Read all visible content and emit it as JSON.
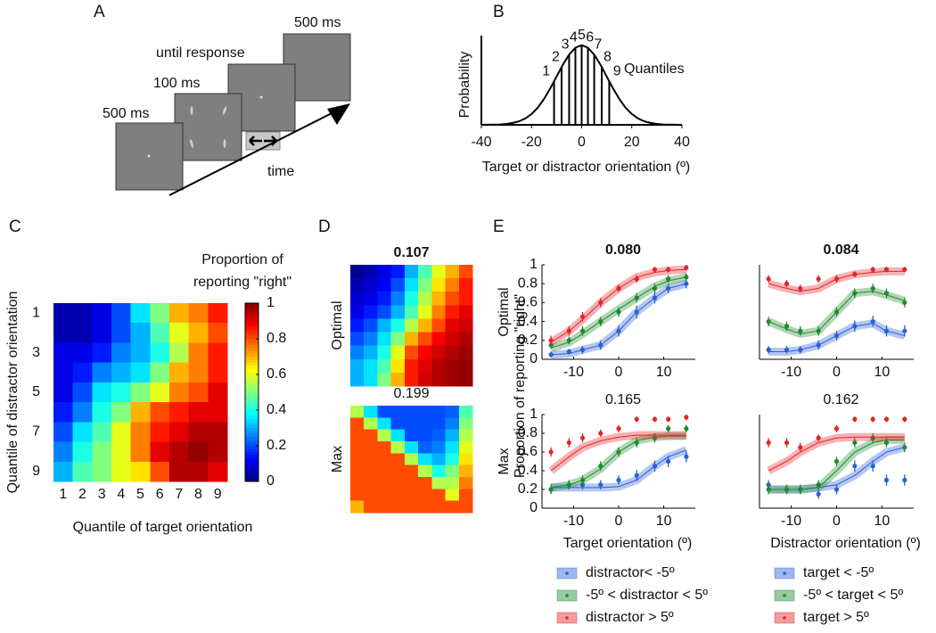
{
  "diagram": {
    "label": "A",
    "frames": [
      {
        "label": "500 ms"
      },
      {
        "label": "100 ms"
      },
      {
        "label": "until response"
      },
      {
        "label": "500 ms"
      }
    ],
    "axis_label": "time"
  },
  "chart_data": [
    {
      "type": "line",
      "panel": "B",
      "xlabel": "Target or distractor orientation (º)",
      "ylabel": "Probability",
      "annotation": "Quantiles",
      "x": [
        -40,
        -37.5,
        -35,
        -32.5,
        -30,
        -27.5,
        -25,
        -22.5,
        -20,
        -17.5,
        -15,
        -12.5,
        -10,
        -7.5,
        -5,
        -2.5,
        0,
        2.5,
        5,
        7.5,
        10,
        12.5,
        15,
        17.5,
        20,
        22.5,
        25,
        27.5,
        30,
        32.5,
        35,
        37.5,
        40
      ],
      "values": [
        0,
        0.001,
        0.002,
        0.005,
        0.011,
        0.023,
        0.044,
        0.08,
        0.135,
        0.216,
        0.325,
        0.458,
        0.607,
        0.755,
        0.882,
        0.969,
        1,
        0.969,
        0.882,
        0.755,
        0.607,
        0.458,
        0.325,
        0.216,
        0.135,
        0.08,
        0.044,
        0.023,
        0.011,
        0.005,
        0.002,
        0.001,
        0
      ],
      "color": "#000000",
      "xlim": [
        -40,
        40
      ],
      "ylim": [
        0,
        1.12
      ],
      "xticks": [
        -40,
        -20,
        0,
        20,
        40
      ],
      "quantiles": {
        "x": [
          -11,
          -8,
          -5,
          -2.5,
          0,
          2.5,
          5,
          8,
          11
        ],
        "labels": [
          "1",
          "2",
          "3",
          "4",
          "5",
          "6",
          "7",
          "8",
          "9"
        ]
      }
    },
    {
      "type": "heatmap",
      "panel": "C",
      "xlabel": "Quantile of target orientation",
      "ylabel": "Quantile of distractor orientation",
      "colorbar_title": [
        "Proportion of",
        "reporting \"right\""
      ],
      "x_categories": [
        "1",
        "2",
        "3",
        "4",
        "5",
        "6",
        "7",
        "8",
        "9"
      ],
      "y_categories": [
        "1",
        null,
        "3",
        null,
        "5",
        null,
        "7",
        null,
        "9"
      ],
      "values": [
        [
          0.05,
          0.05,
          0.1,
          0.2,
          0.35,
          0.5,
          0.7,
          0.75,
          0.85
        ],
        [
          0.05,
          0.05,
          0.1,
          0.2,
          0.3,
          0.45,
          0.6,
          0.7,
          0.8
        ],
        [
          0.1,
          0.1,
          0.15,
          0.25,
          0.3,
          0.4,
          0.55,
          0.75,
          0.85
        ],
        [
          0.1,
          0.15,
          0.25,
          0.3,
          0.35,
          0.5,
          0.7,
          0.75,
          0.85
        ],
        [
          0.1,
          0.2,
          0.35,
          0.4,
          0.5,
          0.6,
          0.75,
          0.8,
          0.9
        ],
        [
          0.15,
          0.25,
          0.4,
          0.5,
          0.7,
          0.8,
          0.85,
          0.9,
          0.9
        ],
        [
          0.2,
          0.35,
          0.45,
          0.6,
          0.75,
          0.85,
          0.9,
          0.95,
          0.95
        ],
        [
          0.25,
          0.4,
          0.5,
          0.6,
          0.75,
          0.9,
          0.95,
          0.98,
          0.95
        ],
        [
          0.3,
          0.45,
          0.5,
          0.6,
          0.65,
          0.8,
          0.95,
          0.95,
          0.9
        ]
      ],
      "clim": [
        0,
        1
      ],
      "cticks": [
        0,
        0.2,
        0.4,
        0.6,
        0.8,
        1
      ],
      "colormap": "jet"
    },
    {
      "type": "heatmap",
      "panel": "D",
      "title": "0.107",
      "title_weight": "bold",
      "ylabel": "Optimal",
      "values": [
        [
          0.02,
          0.05,
          0.1,
          0.15,
          0.3,
          0.45,
          0.6,
          0.7,
          0.8
        ],
        [
          0.05,
          0.08,
          0.12,
          0.2,
          0.35,
          0.5,
          0.65,
          0.75,
          0.85
        ],
        [
          0.08,
          0.1,
          0.15,
          0.25,
          0.4,
          0.55,
          0.7,
          0.8,
          0.85
        ],
        [
          0.1,
          0.15,
          0.2,
          0.3,
          0.45,
          0.6,
          0.75,
          0.85,
          0.9
        ],
        [
          0.15,
          0.2,
          0.3,
          0.4,
          0.55,
          0.7,
          0.8,
          0.9,
          0.92
        ],
        [
          0.2,
          0.25,
          0.35,
          0.5,
          0.7,
          0.8,
          0.88,
          0.92,
          0.95
        ],
        [
          0.25,
          0.3,
          0.4,
          0.6,
          0.8,
          0.88,
          0.92,
          0.95,
          0.97
        ],
        [
          0.3,
          0.35,
          0.45,
          0.65,
          0.85,
          0.9,
          0.95,
          0.97,
          0.98
        ],
        [
          0.3,
          0.35,
          0.5,
          0.7,
          0.85,
          0.92,
          0.95,
          0.97,
          0.98
        ]
      ],
      "clim": [
        0,
        1
      ],
      "colormap": "jet"
    },
    {
      "type": "heatmap",
      "title": "0.199",
      "title_weight": "normal",
      "ylabel": "Max",
      "values": [
        [
          0.55,
          0.35,
          0.2,
          0.2,
          0.2,
          0.2,
          0.2,
          0.22,
          0.45
        ],
        [
          0.8,
          0.55,
          0.35,
          0.2,
          0.2,
          0.2,
          0.2,
          0.25,
          0.5
        ],
        [
          0.8,
          0.8,
          0.55,
          0.35,
          0.2,
          0.2,
          0.22,
          0.3,
          0.55
        ],
        [
          0.8,
          0.8,
          0.8,
          0.55,
          0.35,
          0.22,
          0.25,
          0.35,
          0.6
        ],
        [
          0.8,
          0.8,
          0.8,
          0.8,
          0.55,
          0.35,
          0.3,
          0.4,
          0.65
        ],
        [
          0.8,
          0.8,
          0.8,
          0.8,
          0.8,
          0.55,
          0.4,
          0.5,
          0.7
        ],
        [
          0.8,
          0.8,
          0.8,
          0.8,
          0.8,
          0.8,
          0.55,
          0.55,
          0.75
        ],
        [
          0.8,
          0.8,
          0.8,
          0.8,
          0.8,
          0.8,
          0.8,
          0.6,
          0.8
        ],
        [
          0.7,
          0.8,
          0.8,
          0.8,
          0.8,
          0.8,
          0.8,
          0.8,
          0.8
        ]
      ],
      "clim": [
        0,
        1
      ],
      "colormap": "jet"
    },
    {
      "type": "errorbar",
      "panel": "E",
      "title": "0.080",
      "title_weight": "bold",
      "row_label": "Optimal",
      "ylabel": "Proportion of reporting \"right\"",
      "legend": "below",
      "x": [
        -15,
        -11,
        -8,
        -4,
        0,
        4,
        8,
        11,
        15
      ],
      "xlim": [
        -17,
        17
      ],
      "xticks": [
        -10,
        0,
        10
      ],
      "ylim": [
        0,
        1
      ],
      "yticks": [
        0,
        0.2,
        0.4,
        0.6,
        0.8,
        1
      ],
      "series": [
        {
          "name": "distractor< -5º",
          "color": "#2a5fd8",
          "values": [
            0.05,
            0.08,
            0.1,
            0.15,
            0.3,
            0.5,
            0.65,
            0.75,
            0.8
          ],
          "errors": [
            0.03,
            0.03,
            0.04,
            0.05,
            0.06,
            0.07,
            0.06,
            0.05,
            0.05
          ],
          "model": [
            0.05,
            0.06,
            0.1,
            0.15,
            0.3,
            0.5,
            0.65,
            0.75,
            0.8
          ]
        },
        {
          "name": "-5º < distractor < 5º",
          "color": "#1f8a2e",
          "values": [
            0.15,
            0.2,
            0.3,
            0.4,
            0.5,
            0.65,
            0.75,
            0.85,
            0.87
          ],
          "errors": [
            0.04,
            0.04,
            0.05,
            0.05,
            0.05,
            0.05,
            0.05,
            0.04,
            0.04
          ],
          "model": [
            0.12,
            0.18,
            0.27,
            0.4,
            0.53,
            0.65,
            0.77,
            0.83,
            0.87
          ]
        },
        {
          "name": "distractor > 5º",
          "color": "#e52328",
          "values": [
            0.2,
            0.3,
            0.45,
            0.6,
            0.75,
            0.85,
            0.95,
            0.95,
            0.97
          ],
          "errors": [
            0.05,
            0.05,
            0.05,
            0.05,
            0.04,
            0.04,
            0.03,
            0.03,
            0.03
          ],
          "model": [
            0.18,
            0.3,
            0.42,
            0.6,
            0.75,
            0.87,
            0.92,
            0.94,
            0.95
          ]
        }
      ]
    },
    {
      "type": "errorbar",
      "title": "0.084",
      "title_weight": "bold",
      "legend": "below",
      "x": [
        -15,
        -11,
        -8,
        -4,
        0,
        4,
        8,
        11,
        15
      ],
      "xlim": [
        -17,
        17
      ],
      "xticks": [
        -10,
        0,
        10
      ],
      "ylim": [
        0,
        1
      ],
      "series": [
        {
          "name": "target < -5º",
          "color": "#2a5fd8",
          "values": [
            0.1,
            0.1,
            0.1,
            0.15,
            0.25,
            0.35,
            0.4,
            0.3,
            0.3
          ],
          "errors": [
            0.04,
            0.04,
            0.04,
            0.05,
            0.05,
            0.06,
            0.06,
            0.06,
            0.06
          ],
          "model": [
            0.08,
            0.08,
            0.1,
            0.15,
            0.25,
            0.35,
            0.38,
            0.3,
            0.25
          ]
        },
        {
          "name": "-5º < target < 5º",
          "color": "#1f8a2e",
          "values": [
            0.4,
            0.35,
            0.3,
            0.3,
            0.5,
            0.7,
            0.75,
            0.7,
            0.6
          ],
          "errors": [
            0.05,
            0.05,
            0.05,
            0.05,
            0.05,
            0.05,
            0.05,
            0.05,
            0.05
          ],
          "model": [
            0.4,
            0.32,
            0.27,
            0.3,
            0.5,
            0.7,
            0.72,
            0.68,
            0.62
          ]
        },
        {
          "name": "target > 5º",
          "color": "#e52328",
          "values": [
            0.85,
            0.8,
            0.75,
            0.85,
            0.85,
            0.9,
            0.95,
            0.95,
            0.95
          ],
          "errors": [
            0.04,
            0.04,
            0.04,
            0.04,
            0.04,
            0.03,
            0.03,
            0.03,
            0.03
          ],
          "model": [
            0.8,
            0.75,
            0.72,
            0.75,
            0.85,
            0.9,
            0.92,
            0.93,
            0.93
          ]
        }
      ]
    },
    {
      "type": "errorbar",
      "title": "0.165",
      "title_weight": "normal",
      "row_label": "Max",
      "xlabel": "Target orientation (º)",
      "x": [
        -15,
        -11,
        -8,
        -4,
        0,
        4,
        8,
        11,
        15
      ],
      "xlim": [
        -17,
        17
      ],
      "xticks": [
        -10,
        0,
        10
      ],
      "ylim": [
        0,
        1
      ],
      "yticks": [
        0,
        0.2,
        0.4,
        0.6,
        0.8,
        1
      ],
      "series": [
        {
          "color": "#2a5fd8",
          "values": [
            0.2,
            0.25,
            0.25,
            0.25,
            0.3,
            0.35,
            0.45,
            0.5,
            0.55
          ],
          "errors": [
            0.04,
            0.04,
            0.05,
            0.05,
            0.05,
            0.06,
            0.06,
            0.06,
            0.06
          ],
          "model": [
            0.22,
            0.22,
            0.22,
            0.22,
            0.23,
            0.3,
            0.45,
            0.55,
            0.62
          ]
        },
        {
          "color": "#1f8a2e",
          "values": [
            0.2,
            0.25,
            0.3,
            0.45,
            0.6,
            0.7,
            0.75,
            0.85,
            0.85
          ],
          "errors": [
            0.05,
            0.05,
            0.05,
            0.05,
            0.05,
            0.05,
            0.05,
            0.04,
            0.04
          ],
          "model": [
            0.22,
            0.25,
            0.3,
            0.42,
            0.6,
            0.72,
            0.76,
            0.77,
            0.77
          ]
        },
        {
          "color": "#e52328",
          "values": [
            0.6,
            0.7,
            0.75,
            0.8,
            0.85,
            0.95,
            0.95,
            0.95,
            0.97
          ],
          "errors": [
            0.05,
            0.05,
            0.05,
            0.04,
            0.04,
            0.03,
            0.03,
            0.03,
            0.03
          ],
          "model": [
            0.4,
            0.55,
            0.65,
            0.72,
            0.76,
            0.78,
            0.78,
            0.78,
            0.78
          ]
        }
      ]
    },
    {
      "type": "errorbar",
      "title": "0.162",
      "title_weight": "normal",
      "xlabel": "Distractor orientation (º)",
      "x": [
        -15,
        -11,
        -8,
        -4,
        0,
        4,
        8,
        11,
        15
      ],
      "xlim": [
        -17,
        17
      ],
      "xticks": [
        -10,
        0,
        10
      ],
      "ylim": [
        0,
        1
      ],
      "series": [
        {
          "color": "#2a5fd8",
          "values": [
            0.25,
            0.2,
            0.2,
            0.15,
            0.2,
            0.45,
            0.45,
            0.3,
            0.3
          ],
          "errors": [
            0.05,
            0.05,
            0.05,
            0.05,
            0.05,
            0.06,
            0.06,
            0.06,
            0.06
          ],
          "model": [
            0.2,
            0.2,
            0.2,
            0.22,
            0.25,
            0.35,
            0.5,
            0.6,
            0.65
          ]
        },
        {
          "color": "#1f8a2e",
          "values": [
            0.2,
            0.2,
            0.2,
            0.25,
            0.5,
            0.7,
            0.75,
            0.7,
            0.65
          ],
          "errors": [
            0.05,
            0.05,
            0.05,
            0.05,
            0.05,
            0.05,
            0.05,
            0.05,
            0.05
          ],
          "model": [
            0.2,
            0.2,
            0.2,
            0.22,
            0.4,
            0.6,
            0.7,
            0.73,
            0.73
          ]
        },
        {
          "color": "#e52328",
          "values": [
            0.7,
            0.7,
            0.65,
            0.75,
            0.85,
            0.95,
            0.95,
            0.95,
            0.95
          ],
          "errors": [
            0.05,
            0.05,
            0.05,
            0.04,
            0.04,
            0.03,
            0.03,
            0.03,
            0.03
          ],
          "model": [
            0.4,
            0.5,
            0.6,
            0.7,
            0.75,
            0.76,
            0.76,
            0.76,
            0.76
          ]
        }
      ]
    }
  ]
}
